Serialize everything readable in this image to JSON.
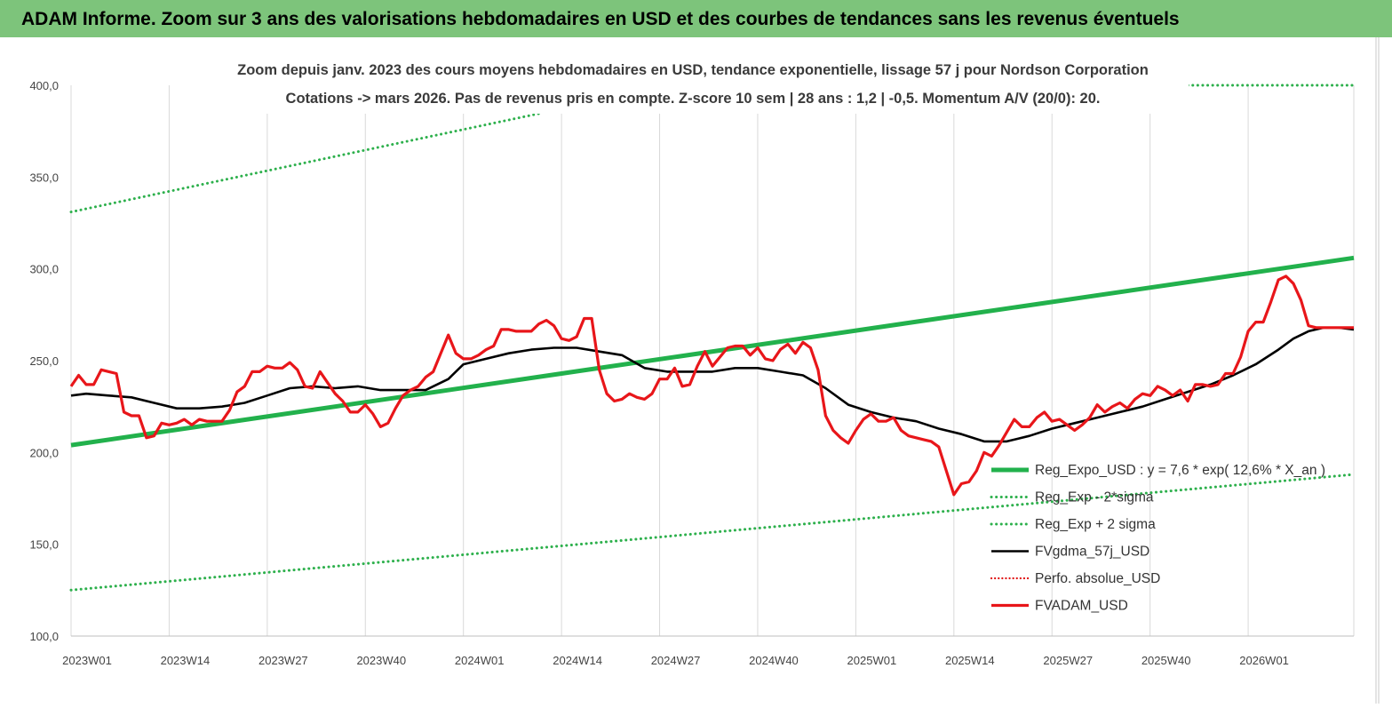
{
  "banner": {
    "title": "ADAM Informe. Zoom sur 3 ans des valorisations hebdomadaires en USD et des courbes de tendances sans les revenus éventuels"
  },
  "colors": {
    "banner_bg": "#7dc47b",
    "trend": "#22b14c",
    "band": "#2db04c",
    "average": "#000000",
    "perfo": "#e01010",
    "price": "#e8161a",
    "grid": "#d9d9d9"
  },
  "chart_data": {
    "type": "line",
    "subtitle_lines": [
      "Zoom depuis janv. 2023 des cours moyens hebdomadaires en USD, tendance exponentielle, lissage 57 j pour Nordson Corporation",
      "Cotations -> mars 2026. Pas de revenus pris en compte. Z-score 10 sem | 28 ans : 1,2 | -0,5. Momentum A/V (20/0): 20."
    ],
    "ylim": [
      100,
      400
    ],
    "y_ticks": [
      "100,0",
      "150,0",
      "200,0",
      "250,0",
      "300,0",
      "350,0",
      "400,0"
    ],
    "y_tick_values": [
      100,
      150,
      200,
      250,
      300,
      350,
      400
    ],
    "x_range_weeks": [
      0,
      170
    ],
    "x_ticks": [
      "2023W01",
      "2023W14",
      "2023W27",
      "2023W40",
      "2024W01",
      "2024W14",
      "2024W27",
      "2024W40",
      "2025W01",
      "2025W14",
      "2025W27",
      "2025W40",
      "2026W01"
    ],
    "x_tick_weeks": [
      0,
      13,
      26,
      39,
      52,
      65,
      78,
      91,
      104,
      117,
      130,
      143,
      156
    ],
    "grid": "vertical",
    "legend_position": "bottom-right",
    "legend": [
      {
        "key": "trend",
        "label": "Reg_Expo_USD : y = 7,6 * exp( 12,6% * X_an )",
        "style": "solid-thick"
      },
      {
        "key": "minus2",
        "label": "Reg_Exp - 2*sigma",
        "style": "dotted-green"
      },
      {
        "key": "plus2",
        "label": "Reg_Exp + 2 sigma",
        "style": "dotted-green"
      },
      {
        "key": "average",
        "label": "FVgdma_57j_USD",
        "style": "solid-black"
      },
      {
        "key": "perfo",
        "label": "Perfo. absolue_USD",
        "style": "dotted-red"
      },
      {
        "key": "price",
        "label": "FVADAM_USD",
        "style": "solid-red"
      }
    ],
    "series": {
      "trend": {
        "x": [
          0,
          170
        ],
        "y": [
          204,
          306
        ]
      },
      "minus2": {
        "x": [
          0,
          170
        ],
        "y": [
          125,
          188
        ]
      },
      "plus2": {
        "x": [
          0,
          62.5
        ],
        "y": [
          331,
          385
        ],
        "x2": [
          148,
          170
        ],
        "y2": [
          400,
          400
        ]
      },
      "average": {
        "x": [
          0,
          2,
          5,
          8,
          11,
          14,
          17,
          20,
          23,
          26,
          29,
          32,
          35,
          38,
          41,
          44,
          47,
          50,
          52,
          55,
          58,
          61,
          64,
          67,
          70,
          73,
          76,
          79,
          82,
          85,
          88,
          91,
          94,
          97,
          100,
          103,
          106,
          109,
          112,
          115,
          118,
          121,
          124,
          127,
          130,
          133,
          136,
          139,
          142,
          145,
          148,
          151,
          154,
          157,
          160,
          162,
          164,
          166,
          168,
          170
        ],
        "y": [
          231,
          232,
          231,
          230,
          227,
          224,
          224,
          225,
          227,
          231,
          235,
          236,
          235,
          236,
          234,
          234,
          234,
          240,
          248,
          251,
          254,
          256,
          257,
          257,
          255,
          253,
          246,
          244,
          244,
          244,
          246,
          246,
          244,
          242,
          235,
          226,
          222,
          219,
          217,
          213,
          210,
          206,
          206,
          209,
          213,
          216,
          219,
          222,
          225,
          229,
          233,
          237,
          242,
          248,
          256,
          262,
          266,
          268,
          268,
          267
        ]
      },
      "price": {
        "x": [
          0,
          1,
          2,
          3,
          4,
          5,
          6,
          7,
          8,
          9,
          10,
          11,
          12,
          13,
          14,
          15,
          16,
          17,
          18,
          19,
          20,
          21,
          22,
          23,
          24,
          25,
          26,
          27,
          28,
          29,
          30,
          31,
          32,
          33,
          34,
          35,
          36,
          37,
          38,
          39,
          40,
          41,
          42,
          43,
          44,
          45,
          46,
          47,
          48,
          49,
          50,
          51,
          52,
          53,
          54,
          55,
          56,
          57,
          58,
          59,
          60,
          61,
          62,
          63,
          64,
          65,
          66,
          67,
          68,
          69,
          70,
          71,
          72,
          73,
          74,
          75,
          76,
          77,
          78,
          79,
          80,
          81,
          82,
          83,
          84,
          85,
          86,
          87,
          88,
          89,
          90,
          91,
          92,
          93,
          94,
          95,
          96,
          97,
          98,
          99,
          100,
          101,
          102,
          103,
          104,
          105,
          106,
          107,
          108,
          109,
          110,
          111,
          112,
          113,
          114,
          115,
          116,
          117,
          118,
          119,
          120,
          121,
          122,
          123,
          124,
          125,
          126,
          127,
          128,
          129,
          130,
          131,
          132,
          133,
          134,
          135,
          136,
          137,
          138,
          139,
          140,
          141,
          142,
          143,
          144,
          145,
          146,
          147,
          148,
          149,
          150,
          151,
          152,
          153,
          154,
          155,
          156,
          157,
          158,
          159,
          160,
          161,
          162,
          163,
          164,
          165,
          166,
          167,
          168,
          169,
          170
        ],
        "y": [
          236,
          242,
          237,
          237,
          245,
          244,
          243,
          222,
          220,
          220,
          208,
          209,
          216,
          215,
          216,
          218,
          215,
          218,
          217,
          217,
          217,
          223,
          233,
          236,
          244,
          244,
          247,
          246,
          246,
          249,
          245,
          236,
          235,
          244,
          238,
          232,
          228,
          222,
          222,
          226,
          221,
          214,
          216,
          224,
          231,
          234,
          236,
          241,
          244,
          254,
          264,
          254,
          251,
          251,
          253,
          256,
          258,
          267,
          267,
          266,
          266,
          266,
          270,
          272,
          269,
          262,
          261,
          263,
          273,
          273,
          245,
          232,
          228,
          229,
          232,
          230,
          229,
          232,
          240,
          240,
          246,
          236,
          237,
          247,
          255,
          247,
          252,
          257,
          258,
          258,
          253,
          257,
          251,
          250,
          256,
          259,
          254,
          260,
          257,
          245,
          220,
          212,
          208,
          205,
          212,
          218,
          221,
          217,
          217,
          219,
          212,
          209,
          208,
          207,
          206,
          203,
          190,
          177,
          183,
          184,
          190,
          200,
          198,
          204,
          211,
          218,
          214,
          214,
          219,
          222,
          217,
          218,
          215,
          212,
          215,
          219,
          226,
          222,
          225,
          227,
          224,
          229,
          232,
          231,
          236,
          234,
          231,
          234,
          228,
          237,
          237,
          236,
          237,
          243,
          243,
          252,
          266,
          271,
          271,
          282,
          294,
          296,
          292,
          283,
          269,
          268,
          268,
          268,
          268,
          268,
          268
        ]
      }
    }
  }
}
